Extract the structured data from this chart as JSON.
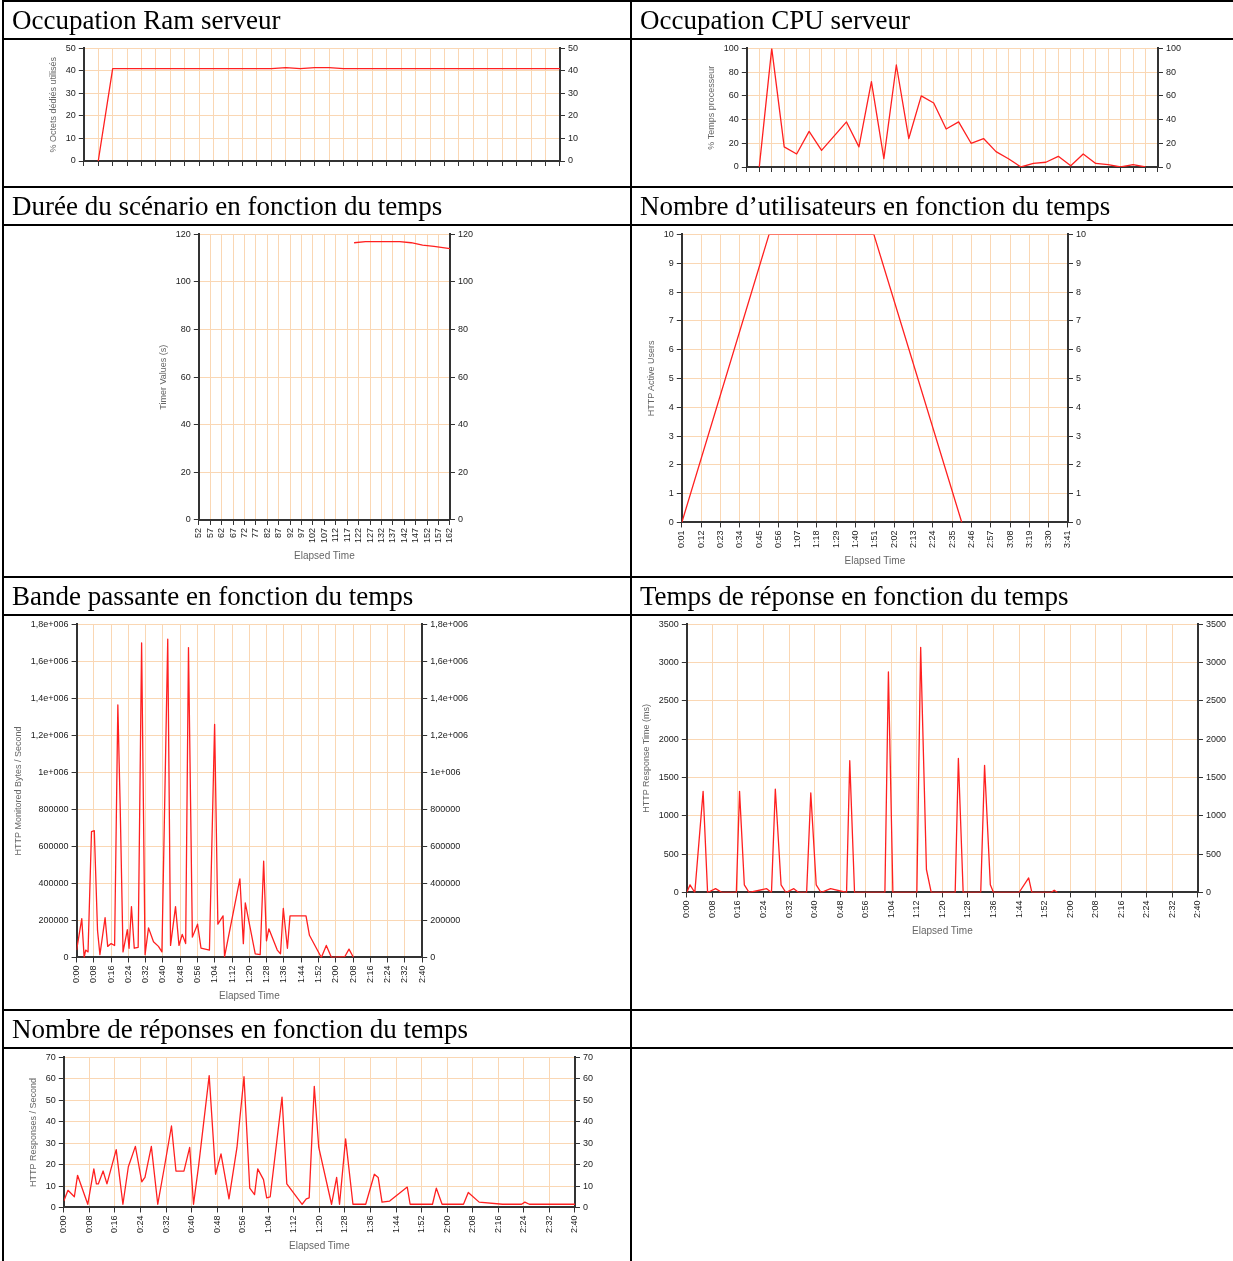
{
  "chart_data": [
    {
      "type": "line",
      "title": "Occupation Ram serveur",
      "ylabel": "% Octets dédiés utilisés",
      "grid": true,
      "categories": [
        null,
        null,
        null,
        null,
        null,
        null,
        null,
        null,
        null,
        null,
        null,
        null,
        null,
        null,
        null,
        null,
        null,
        null,
        null,
        null,
        null,
        null,
        null,
        null,
        null,
        null,
        null,
        null,
        null,
        null,
        null,
        null,
        null,
        null
      ],
      "series": [
        {
          "color": "#ff2020",
          "values": [
            null,
            0,
            41,
            41,
            41,
            41,
            41,
            41,
            41,
            41,
            41,
            41,
            41,
            41,
            41.5,
            41,
            41.5,
            41.5,
            41,
            41,
            41,
            41,
            41,
            41,
            41,
            41,
            41,
            41,
            41,
            41,
            41,
            41,
            41,
            41
          ]
        }
      ],
      "ylim": [
        0,
        50
      ],
      "yticks": [
        0,
        10,
        20,
        30,
        40,
        50
      ],
      "y2lim": [
        0,
        50
      ],
      "y2ticks": [
        0,
        10,
        20,
        30,
        40,
        50
      ]
    },
    {
      "type": "line",
      "title": "Occupation CPU serveur",
      "ylabel": "% Temps processeur",
      "grid": true,
      "categories": [
        null,
        null,
        null,
        null,
        null,
        null,
        null,
        null,
        null,
        null,
        null,
        null,
        null,
        null,
        null,
        null,
        null,
        null,
        null,
        null,
        null,
        null,
        null,
        null,
        null,
        null,
        null,
        null,
        null,
        null,
        null,
        null,
        null,
        null
      ],
      "series": [
        {
          "color": "#ff2020",
          "values": [
            null,
            0,
            100,
            17,
            11,
            30,
            14,
            26,
            38,
            17,
            72,
            7,
            86,
            24,
            60,
            54,
            32,
            38,
            20,
            24,
            13,
            7,
            0,
            3,
            4,
            9,
            1,
            11,
            3,
            2,
            0,
            2,
            0,
            null
          ]
        }
      ],
      "ylim": [
        0,
        100
      ],
      "yticks": [
        0,
        20,
        40,
        60,
        80,
        100
      ],
      "y2lim": [
        0,
        100
      ],
      "y2ticks": [
        0,
        20,
        40,
        60,
        80,
        100
      ]
    },
    {
      "type": "line",
      "title": "Durée du scénario en fonction du temps",
      "xlabel": "Elapsed Time",
      "ylabel": "Timer Values (s)",
      "grid": true,
      "x": [
        120,
        125,
        130,
        135,
        140,
        145,
        150,
        155,
        162
      ],
      "series": [
        {
          "color": "#ff2020",
          "values": [
            116.5,
            117,
            117,
            117,
            117,
            116.5,
            115.5,
            115,
            114
          ]
        }
      ],
      "xlim": [
        52,
        162
      ],
      "xticks": [
        52,
        57,
        62,
        67,
        72,
        77,
        82,
        87,
        92,
        97,
        102,
        107,
        112,
        117,
        122,
        127,
        132,
        137,
        142,
        147,
        152,
        157,
        162
      ],
      "ylim": [
        0,
        120
      ],
      "yticks": [
        0,
        20,
        40,
        60,
        80,
        100,
        120
      ],
      "y2lim": [
        0,
        120
      ],
      "y2ticks": [
        0,
        20,
        40,
        60,
        80,
        100,
        120
      ]
    },
    {
      "type": "line",
      "title": "Nombre d’utilisateurs en fonction du temps",
      "xlabel": "Elapsed Time",
      "ylabel": "HTTP Active Users",
      "grid": true,
      "x": [
        1,
        50.7,
        110.4,
        160.5
      ],
      "series": [
        {
          "color": "#ff2020",
          "values": [
            0,
            10,
            10,
            0
          ]
        }
      ],
      "xlim": [
        1,
        221
      ],
      "xticks": [
        {
          "value": 1,
          "label": "0:01"
        },
        {
          "value": 12,
          "label": "0:12"
        },
        {
          "value": 23,
          "label": "0:23"
        },
        {
          "value": 34,
          "label": "0:34"
        },
        {
          "value": 45,
          "label": "0:45"
        },
        {
          "value": 56,
          "label": "0:56"
        },
        {
          "value": 67,
          "label": "1:07"
        },
        {
          "value": 78,
          "label": "1:18"
        },
        {
          "value": 89,
          "label": "1:29"
        },
        {
          "value": 100,
          "label": "1:40"
        },
        {
          "value": 111,
          "label": "1:51"
        },
        {
          "value": 122,
          "label": "2:02"
        },
        {
          "value": 133,
          "label": "2:13"
        },
        {
          "value": 144,
          "label": "2:24"
        },
        {
          "value": 155,
          "label": "2:35"
        },
        {
          "value": 166,
          "label": "2:46"
        },
        {
          "value": 177,
          "label": "2:57"
        },
        {
          "value": 188,
          "label": "3:08"
        },
        {
          "value": 199,
          "label": "3:19"
        },
        {
          "value": 210,
          "label": "3:30"
        },
        {
          "value": 221,
          "label": "3:41"
        }
      ],
      "ylim": [
        0,
        10
      ],
      "yticks": [
        0,
        1,
        2,
        3,
        4,
        5,
        6,
        7,
        8,
        9,
        10
      ],
      "y2lim": [
        0,
        10
      ],
      "y2ticks": [
        0,
        1,
        2,
        3,
        4,
        5,
        6,
        7,
        8,
        9,
        10
      ]
    },
    {
      "type": "line",
      "title": "Bande passante en fonction du temps",
      "xlabel": "Elapsed Time",
      "ylabel": "HTTP Monitored Bytes / Second",
      "grid": true,
      "x": [
        0,
        2.4,
        3.5,
        4.2,
        5.3,
        6.9,
        8.2,
        9.7,
        10.8,
        13.2,
        14.4,
        16,
        17.6,
        19.1,
        20.2,
        21.5,
        23.5,
        24.3,
        25.4,
        26.7,
        28.5,
        30.1,
        31.7,
        33.3,
        35.6,
        37.9,
        39.5,
        42.2,
        43.5,
        45.8,
        47.4,
        48.9,
        50.5,
        51.8,
        53.6,
        56,
        57.6,
        61.5,
        63.9,
        65.4,
        67.8,
        68.5,
        75.6,
        77.2,
        78.1,
        82.7,
        85,
        86.6,
        87.9,
        89,
        92.9,
        94.4,
        95.7,
        97.6,
        98.8,
        106.2,
        107.8,
        113.3,
        115.6,
        118,
        124.2,
        126.1,
        128.2
      ],
      "series": [
        {
          "color": "#ff2020",
          "values": [
            40000,
            210000,
            0,
            40000,
            30000,
            680000,
            685000,
            145000,
            15000,
            215000,
            60000,
            75000,
            65000,
            1365000,
            805000,
            30000,
            150000,
            50000,
            275000,
            50000,
            55000,
            1700000,
            15000,
            160000,
            85000,
            60000,
            30000,
            1720000,
            65000,
            275000,
            65000,
            125000,
            75000,
            1675000,
            110000,
            180000,
            50000,
            40000,
            1260000,
            180000,
            225000,
            5000,
            425000,
            75000,
            295000,
            20000,
            15000,
            520000,
            90000,
            155000,
            40000,
            20000,
            265000,
            50000,
            225000,
            225000,
            120000,
            0,
            65000,
            0,
            5000,
            45000,
            0
          ]
        }
      ],
      "xlim": [
        0,
        160
      ],
      "xticks": [
        {
          "value": 0,
          "label": "0:00"
        },
        {
          "value": 8,
          "label": "0:08"
        },
        {
          "value": 16,
          "label": "0:16"
        },
        {
          "value": 24,
          "label": "0:24"
        },
        {
          "value": 32,
          "label": "0:32"
        },
        {
          "value": 40,
          "label": "0:40"
        },
        {
          "value": 48,
          "label": "0:48"
        },
        {
          "value": 56,
          "label": "0:56"
        },
        {
          "value": 64,
          "label": "1:04"
        },
        {
          "value": 72,
          "label": "1:12"
        },
        {
          "value": 80,
          "label": "1:20"
        },
        {
          "value": 88,
          "label": "1:28"
        },
        {
          "value": 96,
          "label": "1:36"
        },
        {
          "value": 104,
          "label": "1:44"
        },
        {
          "value": 112,
          "label": "1:52"
        },
        {
          "value": 120,
          "label": "2:00"
        },
        {
          "value": 128,
          "label": "2:08"
        },
        {
          "value": 136,
          "label": "2:16"
        },
        {
          "value": 144,
          "label": "2:24"
        },
        {
          "value": 152,
          "label": "2:32"
        },
        {
          "value": 160,
          "label": "2:40"
        }
      ],
      "ylim": [
        0,
        1800000
      ],
      "yticks": [
        0,
        200000,
        400000,
        600000,
        800000,
        {
          "value": 1000000,
          "label": "1e+006"
        },
        {
          "value": 1200000,
          "label": "1,2e+006"
        },
        {
          "value": 1400000,
          "label": "1,4e+006"
        },
        {
          "value": 1600000,
          "label": "1,6e+006"
        },
        {
          "value": 1800000,
          "label": "1,8e+006"
        }
      ],
      "y2lim": [
        0,
        1800000
      ],
      "y2ticks": [
        0,
        200000,
        400000,
        600000,
        800000,
        {
          "value": 1000000,
          "label": "1e+006"
        },
        {
          "value": 1200000,
          "label": "1,2e+006"
        },
        {
          "value": 1400000,
          "label": "1,4e+006"
        },
        {
          "value": 1600000,
          "label": "1,6e+006"
        },
        {
          "value": 1800000,
          "label": "1,8e+006"
        }
      ]
    },
    {
      "type": "line",
      "title": "Temps de réponse en fonction du temps",
      "xlabel": "Elapsed Time",
      "ylabel": "HTTP Response Time (ms)",
      "grid": true,
      "x": [
        0,
        1,
        2.5,
        5.1,
        6.5,
        9,
        11,
        15.5,
        16.5,
        18,
        19.5,
        25,
        26.5,
        27.7,
        29.5,
        31,
        33.5,
        35,
        37.5,
        38.8,
        40.5,
        42,
        45,
        50,
        51,
        52.5,
        62,
        63.1,
        64.5,
        72,
        73.2,
        75,
        76.5,
        84,
        85,
        86.5,
        92,
        93.2,
        95,
        96,
        104,
        107,
        108,
        114,
        115,
        116
      ],
      "series": [
        {
          "color": "#ff2020",
          "values": [
            0,
            100,
            0,
            1320,
            0,
            50,
            0,
            0,
            1320,
            100,
            0,
            50,
            0,
            1350,
            100,
            0,
            50,
            0,
            0,
            1300,
            100,
            0,
            50,
            0,
            1720,
            0,
            0,
            2880,
            0,
            0,
            3200,
            300,
            0,
            0,
            1750,
            0,
            0,
            1660,
            100,
            0,
            0,
            190,
            0,
            0,
            30,
            0
          ]
        }
      ],
      "xlim": [
        0,
        160
      ],
      "xticks": [
        {
          "value": 0,
          "label": "0:00"
        },
        {
          "value": 8,
          "label": "0:08"
        },
        {
          "value": 16,
          "label": "0:16"
        },
        {
          "value": 24,
          "label": "0:24"
        },
        {
          "value": 32,
          "label": "0:32"
        },
        {
          "value": 40,
          "label": "0:40"
        },
        {
          "value": 48,
          "label": "0:48"
        },
        {
          "value": 56,
          "label": "0:56"
        },
        {
          "value": 64,
          "label": "1:04"
        },
        {
          "value": 72,
          "label": "1:12"
        },
        {
          "value": 80,
          "label": "1:20"
        },
        {
          "value": 88,
          "label": "1:28"
        },
        {
          "value": 96,
          "label": "1:36"
        },
        {
          "value": 104,
          "label": "1:44"
        },
        {
          "value": 112,
          "label": "1:52"
        },
        {
          "value": 120,
          "label": "2:00"
        },
        {
          "value": 128,
          "label": "2:08"
        },
        {
          "value": 136,
          "label": "2:16"
        },
        {
          "value": 144,
          "label": "2:24"
        },
        {
          "value": 152,
          "label": "2:32"
        },
        {
          "value": 160,
          "label": "2:40"
        }
      ],
      "ylim": [
        0,
        3500
      ],
      "yticks": [
        0,
        500,
        1000,
        1500,
        2000,
        2500,
        3000,
        3500
      ],
      "y2lim": [
        0,
        3500
      ],
      "y2ticks": [
        0,
        500,
        1000,
        1500,
        2000,
        2500,
        3000,
        3500
      ]
    },
    {
      "type": "line",
      "title": "Nombre de réponses en fonction du temps",
      "xlabel": "Elapsed Time",
      "ylabel": "HTTP Responses / Second",
      "grid": true,
      "x": [
        0,
        1.3,
        3.3,
        4.3,
        7.5,
        9.4,
        10.2,
        10.8,
        12.3,
        13.5,
        16.4,
        18.5,
        20.2,
        22.4,
        24.4,
        25.4,
        27.4,
        29.4,
        31.5,
        33.7,
        35.1,
        37.6,
        39.4,
        40.6,
        42.2,
        45.5,
        47.5,
        49.2,
        51.7,
        54.2,
        56.4,
        58.2,
        59.7,
        60.7,
        62.5,
        63.5,
        64.6,
        68.3,
        69.8,
        74.6,
        75.9,
        76.8,
        78.4,
        79.8,
        83.8,
        85.4,
        86.3,
        88.2,
        90.5,
        94.5,
        97.2,
        98.4,
        99.6,
        102,
        107.5,
        108.4,
        115.4,
        116.6,
        118.4,
        125.1,
        126.6,
        130,
        137.3,
        143.3,
        144.3,
        145.7,
        160
      ],
      "series": [
        {
          "color": "#ff2020",
          "values": [
            3,
            8,
            5,
            15,
            1.5,
            18,
            11,
            11,
            17,
            11,
            27,
            1.5,
            19,
            28.5,
            12,
            14,
            28.5,
            1.5,
            19,
            38,
            17,
            17,
            28,
            1.5,
            19.5,
            61.5,
            15.5,
            25,
            4,
            28,
            61,
            9,
            6,
            18,
            13,
            4.5,
            5,
            51.5,
            11,
            1.5,
            4,
            4.5,
            56.5,
            28,
            1.5,
            14,
            1.5,
            32,
            1.5,
            1.5,
            15.5,
            14,
            2.5,
            3,
            9.5,
            1.5,
            1.5,
            9,
            1.5,
            1.5,
            7,
            2.5,
            1.5,
            1.5,
            2.5,
            1.5,
            1.5
          ]
        }
      ],
      "xlim": [
        0,
        160
      ],
      "xticks": [
        {
          "value": 0,
          "label": "0:00"
        },
        {
          "value": 8,
          "label": "0:08"
        },
        {
          "value": 16,
          "label": "0:16"
        },
        {
          "value": 24,
          "label": "0:24"
        },
        {
          "value": 32,
          "label": "0:32"
        },
        {
          "value": 40,
          "label": "0:40"
        },
        {
          "value": 48,
          "label": "0:48"
        },
        {
          "value": 56,
          "label": "0:56"
        },
        {
          "value": 64,
          "label": "1:04"
        },
        {
          "value": 72,
          "label": "1:12"
        },
        {
          "value": 80,
          "label": "1:20"
        },
        {
          "value": 88,
          "label": "1:28"
        },
        {
          "value": 96,
          "label": "1:36"
        },
        {
          "value": 104,
          "label": "1:44"
        },
        {
          "value": 112,
          "label": "1:52"
        },
        {
          "value": 120,
          "label": "2:00"
        },
        {
          "value": 128,
          "label": "2:08"
        },
        {
          "value": 136,
          "label": "2:16"
        },
        {
          "value": 144,
          "label": "2:24"
        },
        {
          "value": 152,
          "label": "2:32"
        },
        {
          "value": 160,
          "label": "2:40"
        }
      ],
      "ylim": [
        0,
        70
      ],
      "yticks": [
        0,
        10,
        20,
        30,
        40,
        50,
        60,
        70
      ],
      "y2lim": [
        0,
        70
      ],
      "y2ticks": [
        0,
        10,
        20,
        30,
        40,
        50,
        60,
        70
      ]
    }
  ]
}
